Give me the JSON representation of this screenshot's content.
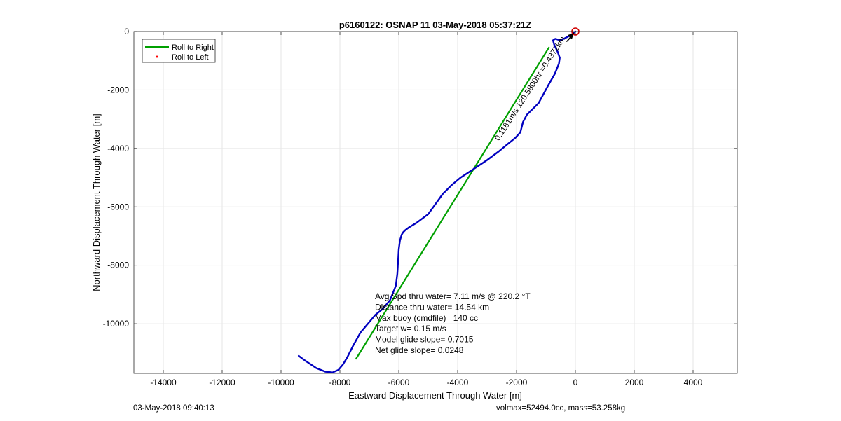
{
  "footer": {
    "left": "03-May-2018 09:40:13",
    "right": "volmax=52494.0cc, mass=53.258kg"
  },
  "colors": {
    "roll_right": "#00a000",
    "roll_left": "#ff0000",
    "track": "#0000c0",
    "target_marker": "#d00000",
    "current_arrow": "#000000",
    "grid": "#e6e6e6"
  },
  "chart_data": {
    "type": "line",
    "title": "p6160122: OSNAP 11 03-May-2018 05:37:21Z",
    "xlabel": "Eastward Displacement Through Water [m]",
    "ylabel": "Northward Displacement Through Water [m]",
    "xlim": [
      -15000,
      5500
    ],
    "ylim": [
      -11700,
      0
    ],
    "xticks": [
      -14000,
      -12000,
      -10000,
      -8000,
      -6000,
      -4000,
      -2000,
      0,
      2000,
      4000
    ],
    "yticks": [
      0,
      -2000,
      -4000,
      -6000,
      -8000,
      -10000
    ],
    "grid": true,
    "legend": {
      "position": "top-left",
      "entries": [
        {
          "name": "Roll to Right",
          "style": "line",
          "color": "#00a000"
        },
        {
          "name": "Roll to Left",
          "style": "dot",
          "color": "#ff0000"
        }
      ]
    },
    "series": [
      {
        "name": "Roll to Right",
        "style": "line",
        "color": "#00a000",
        "x": [
          -7450,
          -900
        ],
        "y": [
          -11200,
          -550
        ]
      },
      {
        "style": "line",
        "color": "#0000c0",
        "x": [
          -9400,
          -9200,
          -8800,
          -8500,
          -8250,
          -8050,
          -7900,
          -7750,
          -7550,
          -7300,
          -7050,
          -6800,
          -6550,
          -6300,
          -6100,
          -6050,
          -6020,
          -6000,
          -5960,
          -5900,
          -5850,
          -5780,
          -5650,
          -5400,
          -5000,
          -4750,
          -4500,
          -4200,
          -3900,
          -3600,
          -3300,
          -3000,
          -2600,
          -2300,
          -2050,
          -1870,
          -1780,
          -1650,
          -1500,
          -1250,
          -900,
          -700,
          -560,
          -530,
          -600,
          -720,
          -760,
          -680,
          -580,
          -500,
          -400,
          -300,
          -200,
          -100,
          0
        ],
        "y": [
          -11100,
          -11250,
          -11520,
          -11640,
          -11670,
          -11580,
          -11400,
          -11150,
          -10750,
          -10300,
          -10000,
          -9700,
          -9500,
          -9200,
          -8700,
          -8300,
          -7800,
          -7450,
          -7150,
          -6950,
          -6870,
          -6800,
          -6700,
          -6550,
          -6250,
          -5900,
          -5550,
          -5250,
          -5000,
          -4800,
          -4600,
          -4400,
          -4100,
          -3850,
          -3650,
          -3450,
          -3100,
          -2850,
          -2700,
          -2450,
          -1800,
          -1450,
          -1100,
          -900,
          -700,
          -450,
          -300,
          -250,
          -280,
          -300,
          -250,
          -200,
          -150,
          -80,
          0
        ]
      }
    ],
    "target_marker": {
      "x": 0,
      "y": 0,
      "symbol": "circle"
    },
    "current_arrows": {
      "label": "0.1181m/s 120.5800hr =0.4372km",
      "from": [
        -300,
        -350
      ],
      "to": [
        -50,
        -50
      ],
      "count": 6
    },
    "annotation_lines": [
      "Avg Spd thru water=  7.11 m/s @ 220.2 °T",
      "Distance thru water= 14.54 km",
      "Max buoy (cmdfile)= 140 cc",
      "Target w= 0.15 m/s",
      "Model glide slope= 0.7015",
      "Net glide slope= 0.0248"
    ]
  }
}
